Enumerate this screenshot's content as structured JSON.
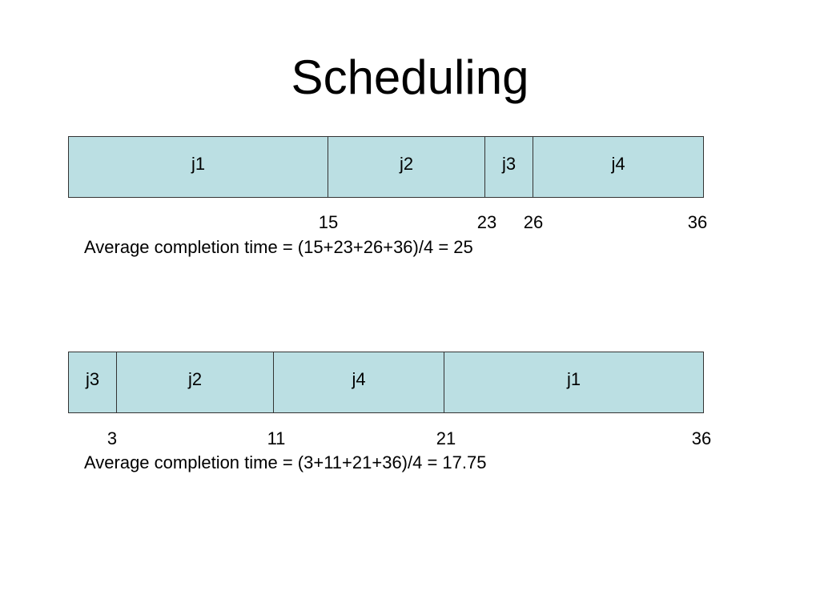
{
  "title": "Scheduling",
  "schedules": [
    {
      "jobs": [
        {
          "label": "j1",
          "start": 0,
          "end": 15
        },
        {
          "label": "j2",
          "start": 15,
          "end": 23
        },
        {
          "label": "j3",
          "start": 23,
          "end": 26
        },
        {
          "label": "j4",
          "start": 26,
          "end": 36
        }
      ],
      "ticks": [
        "15",
        "23",
        "26",
        "36"
      ],
      "summary": "Average completion time = (15+23+26+36)/4 = 25"
    },
    {
      "jobs": [
        {
          "label": "j3",
          "start": 0,
          "end": 3
        },
        {
          "label": "j2",
          "start": 3,
          "end": 11
        },
        {
          "label": "j4",
          "start": 11,
          "end": 21
        },
        {
          "label": "j1",
          "start": 21,
          "end": 36
        }
      ],
      "ticks": [
        "3",
        "11",
        "21",
        "36"
      ],
      "summary": "Average completion time = (3+11+21+36)/4 = 17.75"
    }
  ],
  "colors": {
    "block_fill": "#bbdfe3",
    "block_border": "#333333"
  }
}
